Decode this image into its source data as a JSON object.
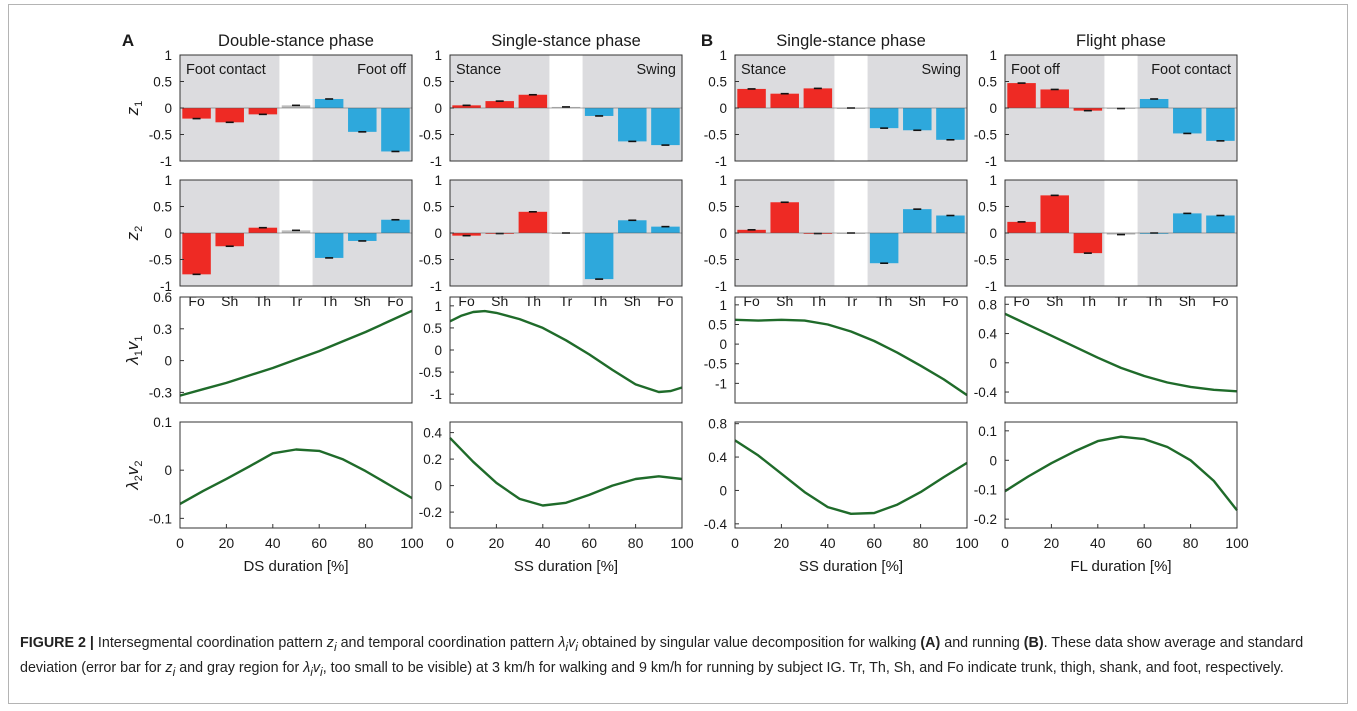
{
  "panel_letters": [
    "A",
    "B"
  ],
  "colors": {
    "red": "#EE2A24",
    "blue": "#2EA8DC",
    "shade": "#DCDCDF",
    "curve": "#1F6B2A",
    "trunk": "#BDBDBD"
  },
  "caption": {
    "label": "FIGURE 2 |",
    "text": "Intersegmental coordination pattern z_i and temporal coordination pattern λ_iv_i obtained by singular value decomposition for walking (A) and running (B). These data show average and standard deviation (error bar for z_i and gray region for λ_iv_i, too small to be visible) at 3 km/h for walking and 9 km/h for running by subject IG. Tr, Th, Sh, and Fo indicate trunk, thigh, shank, and foot, respectively.",
    "part1": "Intersegmental coordination pattern ",
    "part2": " and temporal coordination pattern ",
    "part3": " obtained by singular value decomposition for walking ",
    "bold_a": "(A)",
    "part4": " and running ",
    "bold_b": "(B)",
    "part5": ". These data show average and standard deviation (error bar for ",
    "part6": " and gray region for ",
    "part7": ", too small to be visible) at 3 km/h for walking and 9 km/h for running by subject IG. Tr, Th, Sh, and Fo indicate trunk, thigh, shank, and foot, respectively.",
    "sym_z": "z",
    "sym_lv": "λ",
    "sym_v": "v",
    "sub_i": "i"
  },
  "chart_data": [
    {
      "type": "bar",
      "panel": "A",
      "column": 0,
      "row": "z1",
      "title": "Double-stance phase",
      "ylabel": "z1",
      "ylim": [
        -1,
        1
      ],
      "yticks": [
        "1",
        "0.5",
        "0",
        "-0.5",
        "-1"
      ],
      "region_labels": [
        "Foot contact",
        "Foot off"
      ],
      "categories": [
        "Fo",
        "Sh",
        "Th",
        "Tr",
        "Th",
        "Sh",
        "Fo"
      ],
      "values": [
        -0.2,
        -0.27,
        -0.12,
        0.05,
        0.17,
        -0.45,
        -0.82
      ]
    },
    {
      "type": "bar",
      "panel": "A",
      "column": 0,
      "row": "z2",
      "ylabel": "z2",
      "ylim": [
        -1,
        1
      ],
      "yticks": [
        "1",
        "0.5",
        "0",
        "-0.5",
        "-1"
      ],
      "categories": [
        "Fo",
        "Sh",
        "Th",
        "Tr",
        "Th",
        "Sh",
        "Fo"
      ],
      "values": [
        -0.78,
        -0.25,
        0.1,
        0.05,
        -0.47,
        -0.15,
        0.25
      ]
    },
    {
      "type": "bar",
      "panel": "A",
      "column": 1,
      "row": "z1",
      "title": "Single-stance phase",
      "ylim": [
        -1,
        1
      ],
      "yticks": [
        "1",
        "0.5",
        "0",
        "-0.5",
        "-1"
      ],
      "region_labels": [
        "Stance",
        "Swing"
      ],
      "categories": [
        "Fo",
        "Sh",
        "Th",
        "Tr",
        "Th",
        "Sh",
        "Fo"
      ],
      "values": [
        0.05,
        0.13,
        0.25,
        0.02,
        -0.15,
        -0.63,
        -0.7
      ]
    },
    {
      "type": "bar",
      "panel": "A",
      "column": 1,
      "row": "z2",
      "ylim": [
        -1,
        1
      ],
      "yticks": [
        "1",
        "0.5",
        "0",
        "-0.5",
        "-1"
      ],
      "categories": [
        "Fo",
        "Sh",
        "Th",
        "Tr",
        "Th",
        "Sh",
        "Fo"
      ],
      "values": [
        -0.05,
        -0.01,
        0.4,
        0.0,
        -0.87,
        0.24,
        0.12
      ]
    },
    {
      "type": "bar",
      "panel": "B",
      "column": 2,
      "row": "z1",
      "title": "Single-stance phase",
      "ylim": [
        -1,
        1
      ],
      "yticks": [
        "1",
        "0.5",
        "0",
        "-0.5",
        "-1"
      ],
      "region_labels": [
        "Stance",
        "Swing"
      ],
      "categories": [
        "Fo",
        "Sh",
        "Th",
        "Tr",
        "Th",
        "Sh",
        "Fo"
      ],
      "values": [
        0.36,
        0.27,
        0.37,
        0.0,
        -0.38,
        -0.42,
        -0.6
      ]
    },
    {
      "type": "bar",
      "panel": "B",
      "column": 2,
      "row": "z2",
      "ylim": [
        -1,
        1
      ],
      "yticks": [
        "1",
        "0.5",
        "0",
        "-0.5",
        "-1"
      ],
      "categories": [
        "Fo",
        "Sh",
        "Th",
        "Tr",
        "Th",
        "Sh",
        "Fo"
      ],
      "values": [
        0.06,
        0.58,
        -0.01,
        0.0,
        -0.57,
        0.45,
        0.33
      ]
    },
    {
      "type": "bar",
      "panel": "B",
      "column": 3,
      "row": "z1",
      "title": "Flight phase",
      "ylim": [
        -1,
        1
      ],
      "yticks": [
        "1",
        "0.5",
        "0",
        "-0.5",
        "-1"
      ],
      "region_labels": [
        "Foot off",
        "Foot contact"
      ],
      "categories": [
        "Fo",
        "Sh",
        "Th",
        "Tr",
        "Th",
        "Sh",
        "Fo"
      ],
      "values": [
        0.47,
        0.35,
        -0.05,
        -0.01,
        0.17,
        -0.48,
        -0.62
      ]
    },
    {
      "type": "bar",
      "panel": "B",
      "column": 3,
      "row": "z2",
      "ylim": [
        -1,
        1
      ],
      "yticks": [
        "1",
        "0.5",
        "0",
        "-0.5",
        "-1"
      ],
      "categories": [
        "Fo",
        "Sh",
        "Th",
        "Tr",
        "Th",
        "Sh",
        "Fo"
      ],
      "values": [
        0.21,
        0.71,
        -0.38,
        -0.03,
        0.0,
        0.37,
        0.33
      ]
    },
    {
      "type": "line",
      "panel": "A",
      "column": 0,
      "row": "lv1",
      "ylabel": "λ1v1",
      "ylim": [
        -0.4,
        0.6
      ],
      "yticks": [
        {
          "v": 0.6,
          "label": "0.6"
        },
        {
          "v": 0.3,
          "label": "0.3"
        },
        {
          "v": 0,
          "label": "0"
        },
        {
          "v": -0.3,
          "label": "-0.3"
        }
      ],
      "x": [
        0,
        10,
        20,
        30,
        40,
        50,
        60,
        70,
        80,
        90,
        100
      ],
      "y": [
        -0.33,
        -0.27,
        -0.21,
        -0.14,
        -0.07,
        0.01,
        0.09,
        0.18,
        0.27,
        0.37,
        0.47
      ]
    },
    {
      "type": "line",
      "panel": "A",
      "column": 0,
      "row": "lv2",
      "ylabel": "λ2v2",
      "xlabel": "DS duration [%]",
      "ylim": [
        -0.12,
        0.1
      ],
      "yticks": [
        {
          "v": 0.1,
          "label": "0.1"
        },
        {
          "v": 0,
          "label": "0"
        },
        {
          "v": -0.1,
          "label": "-0.1"
        }
      ],
      "xticks": [
        "0",
        "20",
        "40",
        "60",
        "80",
        "100"
      ],
      "x": [
        0,
        10,
        20,
        30,
        40,
        50,
        60,
        70,
        80,
        90,
        100
      ],
      "y": [
        -0.07,
        -0.043,
        -0.018,
        0.008,
        0.035,
        0.043,
        0.04,
        0.023,
        -0.002,
        -0.03,
        -0.058
      ]
    },
    {
      "type": "line",
      "panel": "A",
      "column": 1,
      "row": "lv1",
      "ylim": [
        -1.2,
        1.2
      ],
      "yticks": [
        {
          "v": 1,
          "label": "1"
        },
        {
          "v": 0.5,
          "label": "0.5"
        },
        {
          "v": 0,
          "label": "0"
        },
        {
          "v": -0.5,
          "label": "-0.5"
        },
        {
          "v": -1,
          "label": "-1"
        }
      ],
      "x": [
        0,
        5,
        10,
        15,
        20,
        30,
        40,
        50,
        60,
        70,
        80,
        90,
        95,
        100
      ],
      "y": [
        0.65,
        0.78,
        0.86,
        0.88,
        0.84,
        0.7,
        0.5,
        0.22,
        -0.1,
        -0.45,
        -0.78,
        -0.95,
        -0.93,
        -0.85
      ]
    },
    {
      "type": "line",
      "panel": "A",
      "column": 1,
      "row": "lv2",
      "xlabel": "SS duration [%]",
      "ylim": [
        -0.32,
        0.48
      ],
      "yticks": [
        {
          "v": 0.4,
          "label": "0.4"
        },
        {
          "v": 0.2,
          "label": "0.2"
        },
        {
          "v": 0,
          "label": "0"
        },
        {
          "v": -0.2,
          "label": "-0.2"
        }
      ],
      "xticks": [
        "0",
        "20",
        "40",
        "60",
        "80",
        "100"
      ],
      "x": [
        0,
        10,
        20,
        30,
        40,
        50,
        60,
        70,
        80,
        90,
        100
      ],
      "y": [
        0.36,
        0.18,
        0.02,
        -0.1,
        -0.15,
        -0.13,
        -0.07,
        0.0,
        0.05,
        0.07,
        0.05
      ]
    },
    {
      "type": "line",
      "panel": "B",
      "column": 2,
      "row": "lv1",
      "ylim": [
        -1.5,
        1.2
      ],
      "yticks": [
        {
          "v": 1,
          "label": "1"
        },
        {
          "v": 0.5,
          "label": "0.5"
        },
        {
          "v": 0,
          "label": "0"
        },
        {
          "v": -0.5,
          "label": "-0.5"
        },
        {
          "v": -1,
          "label": "-1"
        }
      ],
      "x": [
        0,
        10,
        20,
        30,
        40,
        50,
        60,
        70,
        80,
        90,
        100
      ],
      "y": [
        0.62,
        0.6,
        0.62,
        0.6,
        0.5,
        0.32,
        0.08,
        -0.22,
        -0.55,
        -0.9,
        -1.3
      ]
    },
    {
      "type": "line",
      "panel": "B",
      "column": 2,
      "row": "lv2",
      "xlabel": "SS duration [%]",
      "ylim": [
        -0.45,
        0.82
      ],
      "yticks": [
        {
          "v": 0.8,
          "label": "0.8"
        },
        {
          "v": 0.4,
          "label": "0.4"
        },
        {
          "v": 0,
          "label": "0"
        },
        {
          "v": -0.4,
          "label": "-0.4"
        }
      ],
      "xticks": [
        "0",
        "20",
        "40",
        "60",
        "80",
        "100"
      ],
      "x": [
        0,
        10,
        20,
        30,
        40,
        50,
        60,
        70,
        80,
        90,
        100
      ],
      "y": [
        0.6,
        0.42,
        0.2,
        -0.02,
        -0.2,
        -0.28,
        -0.27,
        -0.17,
        -0.02,
        0.16,
        0.33
      ]
    },
    {
      "type": "line",
      "panel": "B",
      "column": 3,
      "row": "lv1",
      "ylim": [
        -0.55,
        0.9
      ],
      "yticks": [
        {
          "v": 0.8,
          "label": "0.8"
        },
        {
          "v": 0.4,
          "label": "0.4"
        },
        {
          "v": 0,
          "label": "0"
        },
        {
          "v": -0.4,
          "label": "-0.4"
        }
      ],
      "x": [
        0,
        10,
        20,
        30,
        40,
        50,
        60,
        70,
        80,
        90,
        100
      ],
      "y": [
        0.67,
        0.52,
        0.37,
        0.22,
        0.07,
        -0.07,
        -0.18,
        -0.27,
        -0.33,
        -0.37,
        -0.39
      ]
    },
    {
      "type": "line",
      "panel": "B",
      "column": 3,
      "row": "lv2",
      "xlabel": "FL duration [%]",
      "ylim": [
        -0.23,
        0.13
      ],
      "yticks": [
        {
          "v": 0.1,
          "label": "0.1"
        },
        {
          "v": 0,
          "label": "0"
        },
        {
          "v": -0.1,
          "label": "-0.1"
        },
        {
          "v": -0.2,
          "label": "-0.2"
        }
      ],
      "xticks": [
        "0",
        "20",
        "40",
        "60",
        "80",
        "100"
      ],
      "x": [
        0,
        10,
        20,
        30,
        40,
        50,
        60,
        70,
        80,
        90,
        100
      ],
      "y": [
        -0.105,
        -0.055,
        -0.01,
        0.03,
        0.065,
        0.08,
        0.072,
        0.045,
        0.0,
        -0.07,
        -0.17
      ]
    }
  ]
}
